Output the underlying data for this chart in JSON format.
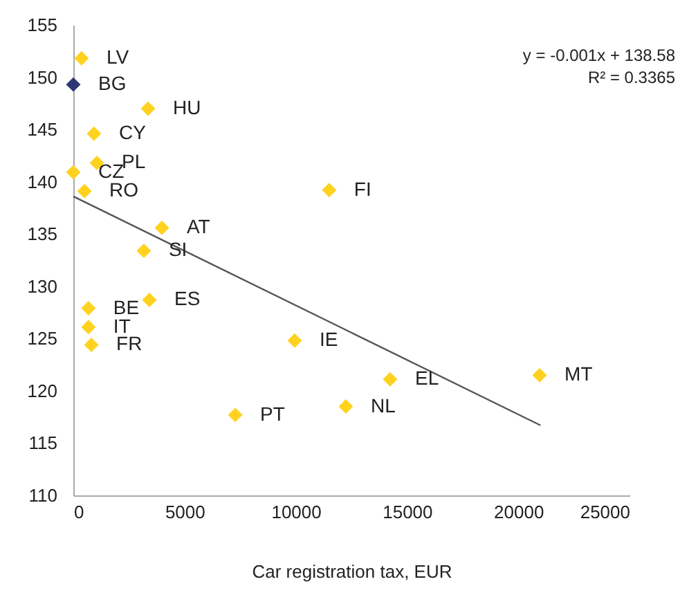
{
  "chart_data": {
    "type": "scatter",
    "xlabel": "Car registration tax, EUR",
    "xlim": [
      0,
      25000
    ],
    "xticks": [
      0,
      5000,
      10000,
      15000,
      20000,
      25000
    ],
    "ylim": [
      110,
      155
    ],
    "yticks": [
      110,
      115,
      120,
      125,
      130,
      135,
      140,
      145,
      150,
      155
    ],
    "grid": false,
    "series": [
      {
        "type": "scatter",
        "marker": "diamond",
        "x": [
          370,
          0,
          3360,
          930,
          1060,
          0,
          500,
          11500,
          3980,
          3170,
          3420,
          680,
          680,
          810,
          9950,
          7280,
          14240,
          12250,
          20960
        ],
        "values": [
          151.8,
          149.3,
          147.0,
          144.6,
          141.8,
          140.9,
          139.1,
          139.2,
          135.6,
          133.4,
          128.7,
          127.9,
          126.1,
          124.4,
          124.8,
          117.7,
          121.1,
          118.5,
          121.5
        ],
        "colors": [
          "#ffd21f",
          "#2e3676",
          "#ffd21f",
          "#ffd21f",
          "#ffd21f",
          "#ffd21f",
          "#ffd21f",
          "#ffd21f",
          "#ffd21f",
          "#ffd21f",
          "#ffd21f",
          "#ffd21f",
          "#ffd21f",
          "#ffd21f",
          "#ffd21f",
          "#ffd21f",
          "#ffd21f",
          "#ffd21f",
          "#ffd21f"
        ]
      },
      {
        "type": "line",
        "x": [
          0,
          21000
        ],
        "values": [
          138.6,
          116.7
        ],
        "color": "#555555"
      }
    ],
    "annotations": [
      {
        "text": "LV",
        "x": 370,
        "y": 151.8
      },
      {
        "text": "BG",
        "x": 0,
        "y": 149.3
      },
      {
        "text": "HU",
        "x": 3360,
        "y": 147.0
      },
      {
        "text": "CY",
        "x": 930,
        "y": 144.6
      },
      {
        "text": "PL",
        "x": 1060,
        "y": 141.8
      },
      {
        "text": "CZ",
        "x": 0,
        "y": 140.9
      },
      {
        "text": "RO",
        "x": 500,
        "y": 139.1
      },
      {
        "text": "FI",
        "x": 11500,
        "y": 139.2
      },
      {
        "text": "AT",
        "x": 3980,
        "y": 135.6
      },
      {
        "text": "SI",
        "x": 3170,
        "y": 133.4
      },
      {
        "text": "ES",
        "x": 3420,
        "y": 128.7
      },
      {
        "text": "BE",
        "x": 680,
        "y": 127.9
      },
      {
        "text": "IT",
        "x": 680,
        "y": 126.1
      },
      {
        "text": "FR",
        "x": 810,
        "y": 124.4
      },
      {
        "text": "IE",
        "x": 9950,
        "y": 124.8
      },
      {
        "text": "PT",
        "x": 7280,
        "y": 117.7
      },
      {
        "text": "EL",
        "x": 14240,
        "y": 121.1
      },
      {
        "text": "NL",
        "x": 12250,
        "y": 118.5
      },
      {
        "text": "MT",
        "x": 20960,
        "y": 121.5
      },
      "y = -0.001x + 138.58",
      "R² = 0.3365"
    ]
  }
}
